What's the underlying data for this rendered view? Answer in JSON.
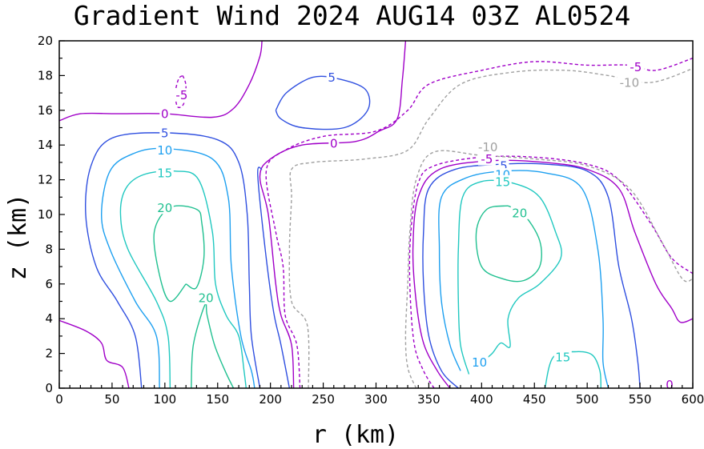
{
  "chart_data": {
    "type": "contour",
    "title": "Gradient Wind 2024 AUG14 03Z  AL0524",
    "xlabel": "r (km)",
    "ylabel": "z (km)",
    "xlim": [
      0,
      600
    ],
    "ylim": [
      0,
      20
    ],
    "xticks": [
      0,
      50,
      100,
      150,
      200,
      250,
      300,
      350,
      400,
      450,
      500,
      550,
      600
    ],
    "yticks": [
      0,
      2,
      4,
      6,
      8,
      10,
      12,
      14,
      16,
      18,
      20
    ],
    "grid": false,
    "contour_levels": [
      -10,
      -5,
      0,
      5,
      10,
      15,
      20
    ],
    "level_colors": {
      "-10": "#a0a0a0",
      "-5": "#a000c8",
      "0": "#a000c8",
      "5": "#3050e0",
      "10": "#1ea0f0",
      "15": "#20c8c0",
      "20": "#20c090"
    },
    "contours": [
      {
        "level": 0,
        "dashed": false,
        "points": [
          [
            0,
            3.9
          ],
          [
            25,
            3.3
          ],
          [
            40,
            2.6
          ],
          [
            45,
            1.6
          ],
          [
            60,
            1.2
          ],
          [
            66,
            0
          ]
        ]
      },
      {
        "level": 0,
        "dashed": false,
        "points": [
          [
            0,
            15.4
          ],
          [
            20,
            15.8
          ],
          [
            55,
            15.8
          ],
          [
            100,
            15.8
          ],
          [
            145,
            15.6
          ],
          [
            165,
            16.1
          ],
          [
            180,
            17.5
          ],
          [
            190,
            19.1
          ],
          [
            192,
            20
          ]
        ]
      },
      {
        "level": 0,
        "dashed": false,
        "points": [
          [
            222,
            0
          ],
          [
            220,
            2.5
          ],
          [
            210,
            4.2
          ],
          [
            205,
            6
          ],
          [
            198,
            10
          ],
          [
            190,
            12.2
          ],
          [
            200,
            13.2
          ],
          [
            230,
            14
          ],
          [
            280,
            14.2
          ],
          [
            303,
            14.8
          ],
          [
            320,
            15.5
          ],
          [
            325,
            17.8
          ],
          [
            328,
            20
          ]
        ]
      },
      {
        "level": 0,
        "dashed": false,
        "points": [
          [
            370,
            0
          ],
          [
            358,
            1
          ],
          [
            345,
            2.6
          ],
          [
            338,
            5
          ],
          [
            335,
            8
          ],
          [
            340,
            11
          ],
          [
            360,
            12.6
          ],
          [
            410,
            13.1
          ],
          [
            460,
            13
          ],
          [
            500,
            12.6
          ],
          [
            530,
            11.5
          ],
          [
            545,
            9
          ],
          [
            565,
            6
          ],
          [
            580,
            4.6
          ],
          [
            588,
            3.8
          ],
          [
            600,
            4
          ]
        ]
      },
      {
        "level": -5,
        "dashed": true,
        "points": [
          [
            228,
            0
          ],
          [
            225,
            2.5
          ],
          [
            214,
            4.2
          ],
          [
            212,
            7
          ],
          [
            205,
            9
          ],
          [
            196,
            12.5
          ],
          [
            214,
            13.7
          ],
          [
            250,
            14.5
          ],
          [
            300,
            14.8
          ],
          [
            330,
            16
          ],
          [
            350,
            17.5
          ],
          [
            400,
            18.3
          ],
          [
            450,
            18.8
          ],
          [
            500,
            18.6
          ],
          [
            540,
            18.6
          ],
          [
            565,
            18.3
          ],
          [
            600,
            19
          ]
        ]
      },
      {
        "level": -5,
        "dashed": true,
        "points": [
          [
            355,
            0
          ],
          [
            345,
            1
          ],
          [
            336,
            2.6
          ],
          [
            332,
            6
          ],
          [
            333,
            9
          ],
          [
            340,
            11.8
          ],
          [
            355,
            12.8
          ],
          [
            400,
            13.3
          ],
          [
            450,
            13.3
          ],
          [
            500,
            12.9
          ],
          [
            530,
            12
          ],
          [
            560,
            9.5
          ],
          [
            580,
            7.5
          ],
          [
            600,
            6.6
          ]
        ]
      },
      {
        "level": -5,
        "dashed": true,
        "points": [
          [
            117,
            18
          ],
          [
            120,
            17.4
          ],
          [
            118,
            16.4
          ],
          [
            112,
            16.2
          ],
          [
            110,
            17
          ],
          [
            113,
            17.8
          ],
          [
            117,
            18
          ]
        ]
      },
      {
        "level": -10,
        "dashed": true,
        "points": [
          [
            236,
            0
          ],
          [
            235,
            3.6
          ],
          [
            220,
            5
          ],
          [
            218,
            8
          ],
          [
            220,
            11
          ],
          [
            220,
            12.6
          ],
          [
            240,
            13
          ],
          [
            290,
            13.2
          ],
          [
            330,
            13.7
          ],
          [
            350,
            15.5
          ],
          [
            380,
            17.5
          ],
          [
            430,
            18.2
          ],
          [
            480,
            18.3
          ],
          [
            520,
            18
          ],
          [
            560,
            17.6
          ],
          [
            600,
            18.4
          ]
        ]
      },
      {
        "level": -10,
        "dashed": true,
        "points": [
          [
            338,
            0
          ],
          [
            330,
            1.2
          ],
          [
            328,
            3
          ],
          [
            330,
            6
          ],
          [
            332,
            9
          ],
          [
            338,
            12
          ],
          [
            355,
            13.6
          ],
          [
            400,
            13.4
          ],
          [
            450,
            13.2
          ],
          [
            500,
            12.8
          ],
          [
            540,
            11.5
          ],
          [
            570,
            8.5
          ],
          [
            590,
            6.3
          ],
          [
            600,
            6.3
          ]
        ]
      },
      {
        "level": 5,
        "dashed": false,
        "points": [
          [
            78,
            0
          ],
          [
            72,
            3
          ],
          [
            55,
            5
          ],
          [
            35,
            7
          ],
          [
            25,
            10
          ],
          [
            30,
            12.8
          ],
          [
            50,
            14.4
          ],
          [
            100,
            14.7
          ],
          [
            150,
            14.3
          ],
          [
            170,
            13
          ],
          [
            178,
            10
          ],
          [
            180,
            6
          ],
          [
            182,
            3
          ],
          [
            190,
            0
          ]
        ]
      },
      {
        "level": 5,
        "dashed": false,
        "points": [
          [
            218,
            0
          ],
          [
            210,
            2.5
          ],
          [
            203,
            4.4
          ],
          [
            195,
            8
          ],
          [
            188,
            12.3
          ],
          [
            192,
            12.6
          ]
        ]
      },
      {
        "level": 5,
        "dashed": false,
        "points": [
          [
            205,
            16
          ],
          [
            215,
            17
          ],
          [
            240,
            17.9
          ],
          [
            265,
            17.8
          ],
          [
            290,
            17.2
          ],
          [
            292,
            16
          ],
          [
            270,
            15
          ],
          [
            230,
            15
          ],
          [
            210,
            15.5
          ],
          [
            205,
            16
          ]
        ]
      },
      {
        "level": 5,
        "dashed": false,
        "points": [
          [
            378,
            0
          ],
          [
            362,
            1
          ],
          [
            350,
            3
          ],
          [
            345,
            6
          ],
          [
            345,
            9
          ],
          [
            350,
            11.5
          ],
          [
            375,
            12.6
          ],
          [
            420,
            12.9
          ],
          [
            460,
            12.9
          ],
          [
            500,
            12.5
          ],
          [
            520,
            11
          ],
          [
            530,
            7
          ],
          [
            542,
            4
          ],
          [
            548,
            1.5
          ],
          [
            550,
            0
          ]
        ]
      },
      {
        "level": 10,
        "dashed": false,
        "points": [
          [
            95,
            0
          ],
          [
            92,
            3
          ],
          [
            72,
            5
          ],
          [
            48,
            8
          ],
          [
            40,
            10
          ],
          [
            48,
            12.5
          ],
          [
            70,
            13.5
          ],
          [
            100,
            13.8
          ],
          [
            145,
            13.2
          ],
          [
            160,
            11
          ],
          [
            163,
            7
          ],
          [
            172,
            3
          ],
          [
            182,
            1
          ],
          [
            185,
            0
          ]
        ]
      },
      {
        "level": 10,
        "dashed": false,
        "points": [
          [
            380,
            1
          ],
          [
            370,
            2.5
          ],
          [
            362,
            5
          ],
          [
            360,
            8
          ],
          [
            362,
            11
          ],
          [
            385,
            12.1
          ],
          [
            420,
            12.5
          ],
          [
            460,
            12.4
          ],
          [
            495,
            11.5
          ],
          [
            510,
            8
          ],
          [
            515,
            4
          ],
          [
            515,
            1.5
          ],
          [
            520,
            0
          ]
        ]
      },
      {
        "level": 15,
        "dashed": false,
        "points": [
          [
            105,
            0
          ],
          [
            103,
            3
          ],
          [
            92,
            5
          ],
          [
            65,
            8
          ],
          [
            58,
            10
          ],
          [
            63,
            11.5
          ],
          [
            80,
            12.3
          ],
          [
            110,
            12.5
          ],
          [
            132,
            12
          ],
          [
            145,
            9
          ],
          [
            148,
            6
          ],
          [
            158,
            4.2
          ],
          [
            170,
            3
          ],
          [
            175,
            1
          ],
          [
            177,
            0
          ]
        ]
      },
      {
        "level": 15,
        "dashed": false,
        "points": [
          [
            388,
            0.8
          ],
          [
            380,
            2.5
          ],
          [
            378,
            5
          ],
          [
            378,
            8
          ],
          [
            382,
            11
          ],
          [
            400,
            11.9
          ],
          [
            430,
            11.8
          ],
          [
            455,
            11
          ],
          [
            470,
            9
          ],
          [
            475,
            7.5
          ],
          [
            455,
            6
          ],
          [
            435,
            5.2
          ],
          [
            425,
            4
          ],
          [
            427,
            2.4
          ],
          [
            418,
            2.6
          ],
          [
            410,
            2
          ],
          [
            400,
            1.5
          ]
        ]
      },
      {
        "level": 15,
        "dashed": false,
        "points": [
          [
            460,
            0
          ],
          [
            468,
            1.8
          ],
          [
            490,
            2.1
          ],
          [
            505,
            1.9
          ],
          [
            512,
            1
          ],
          [
            513,
            0
          ]
        ]
      },
      {
        "level": 20,
        "dashed": false,
        "points": [
          [
            120,
            6
          ],
          [
            130,
            5.8
          ],
          [
            137,
            7.5
          ],
          [
            135,
            9.5
          ],
          [
            130,
            10.3
          ],
          [
            105,
            10.4
          ],
          [
            90,
            9
          ],
          [
            95,
            6.5
          ],
          [
            105,
            5
          ],
          [
            120,
            6
          ]
        ]
      },
      {
        "level": 20,
        "dashed": false,
        "points": [
          [
            125,
            0
          ],
          [
            127,
            2.5
          ],
          [
            138,
            4.8
          ],
          [
            140,
            4.2
          ],
          [
            147,
            2.5
          ],
          [
            157,
            1
          ],
          [
            165,
            0
          ]
        ]
      },
      {
        "level": 20,
        "dashed": false,
        "points": [
          [
            425,
            10.5
          ],
          [
            440,
            10
          ],
          [
            455,
            8.5
          ],
          [
            455,
            7
          ],
          [
            440,
            6.2
          ],
          [
            420,
            6.3
          ],
          [
            400,
            7
          ],
          [
            395,
            9
          ],
          [
            405,
            10.3
          ],
          [
            425,
            10.5
          ]
        ]
      }
    ],
    "contour_labels": [
      {
        "text": "0",
        "level": 0,
        "x": 100,
        "y": 15.8
      },
      {
        "text": "0",
        "level": 0,
        "x": 260,
        "y": 14.1
      },
      {
        "text": "0",
        "level": 0,
        "x": 578,
        "y": 0.2
      },
      {
        "text": "5",
        "level": 5,
        "x": 100,
        "y": 14.7
      },
      {
        "text": "5",
        "level": 5,
        "x": 258,
        "y": 17.9
      },
      {
        "text": "5",
        "level": 5,
        "x": 421,
        "y": 12.8
      },
      {
        "text": "10",
        "level": 10,
        "x": 100,
        "y": 13.7
      },
      {
        "text": "10",
        "level": 10,
        "x": 420,
        "y": 12.3
      },
      {
        "text": "10",
        "level": 10,
        "x": 398,
        "y": 1.5
      },
      {
        "text": "15",
        "level": 15,
        "x": 100,
        "y": 12.4
      },
      {
        "text": "15",
        "level": 15,
        "x": 420,
        "y": 11.9
      },
      {
        "text": "15",
        "level": 15,
        "x": 477,
        "y": 1.8
      },
      {
        "text": "20",
        "level": 20,
        "x": 100,
        "y": 10.4
      },
      {
        "text": "20",
        "level": 20,
        "x": 139,
        "y": 5.2
      },
      {
        "text": "20",
        "level": 20,
        "x": 436,
        "y": 10.1
      },
      {
        "text": "-5",
        "level": -5,
        "x": 116,
        "y": 16.9
      },
      {
        "text": "-5",
        "level": -5,
        "x": 405,
        "y": 13.2
      },
      {
        "text": "-5",
        "level": -5,
        "x": 546,
        "y": 18.5
      },
      {
        "text": "-10",
        "level": -10,
        "x": 406,
        "y": 13.9
      },
      {
        "text": "-10",
        "level": -10,
        "x": 540,
        "y": 17.6
      }
    ]
  }
}
